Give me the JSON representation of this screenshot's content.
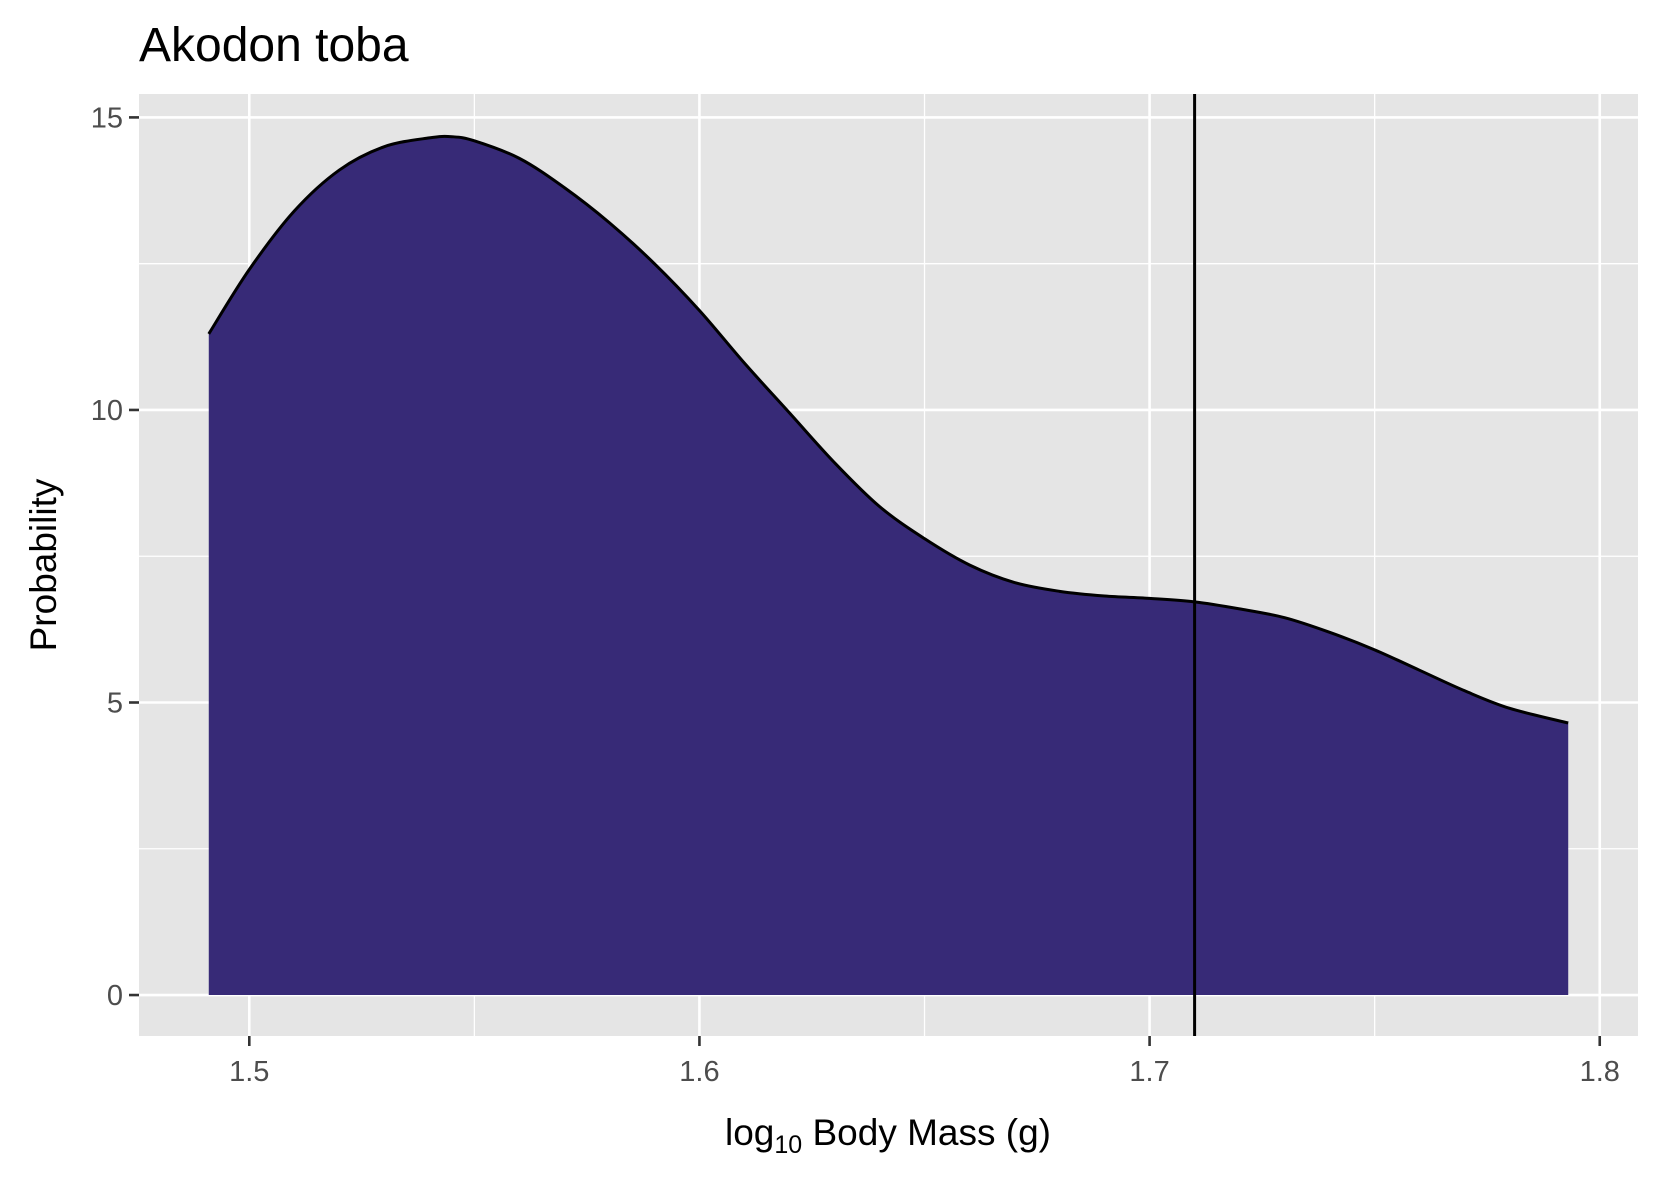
{
  "chart_data": {
    "type": "area",
    "title": "Akodon toba",
    "xlabel": {
      "prefix": "log",
      "subscript": "10",
      "suffix": " Body Mass (g)"
    },
    "ylabel": "Probability",
    "xlim": [
      1.4755,
      1.8085
    ],
    "ylim": [
      -0.7,
      15.4
    ],
    "x_ticks": [
      {
        "value": 1.5,
        "label": "1.5"
      },
      {
        "value": 1.6,
        "label": "1.6"
      },
      {
        "value": 1.7,
        "label": "1.7"
      },
      {
        "value": 1.8,
        "label": "1.8"
      }
    ],
    "y_ticks": [
      {
        "value": 0,
        "label": "0"
      },
      {
        "value": 5,
        "label": "5"
      },
      {
        "value": 10,
        "label": "10"
      },
      {
        "value": 15,
        "label": "15"
      }
    ],
    "x_minor": [
      1.55,
      1.65,
      1.75
    ],
    "y_minor": [
      2.5,
      7.5,
      12.5
    ],
    "grid": true,
    "legend": "none",
    "series": [
      {
        "x": [
          1.491,
          1.5,
          1.51,
          1.52,
          1.53,
          1.54,
          1.545,
          1.55,
          1.56,
          1.57,
          1.58,
          1.59,
          1.6,
          1.61,
          1.62,
          1.63,
          1.64,
          1.65,
          1.66,
          1.67,
          1.68,
          1.69,
          1.7,
          1.71,
          1.72,
          1.73,
          1.74,
          1.75,
          1.76,
          1.77,
          1.78,
          1.793
        ],
        "y": [
          11.3,
          12.4,
          13.4,
          14.1,
          14.5,
          14.65,
          14.67,
          14.6,
          14.3,
          13.8,
          13.2,
          12.5,
          11.7,
          10.8,
          9.95,
          9.1,
          8.35,
          7.8,
          7.35,
          7.05,
          6.9,
          6.82,
          6.78,
          6.72,
          6.6,
          6.45,
          6.2,
          5.9,
          5.55,
          5.2,
          4.9,
          4.65
        ]
      }
    ],
    "vline": 1.71,
    "colors": {
      "fill": "#372a77",
      "outline": "#000000",
      "panel": "#e5e5e5",
      "grid": "#ffffff",
      "vline": "#000000"
    }
  }
}
